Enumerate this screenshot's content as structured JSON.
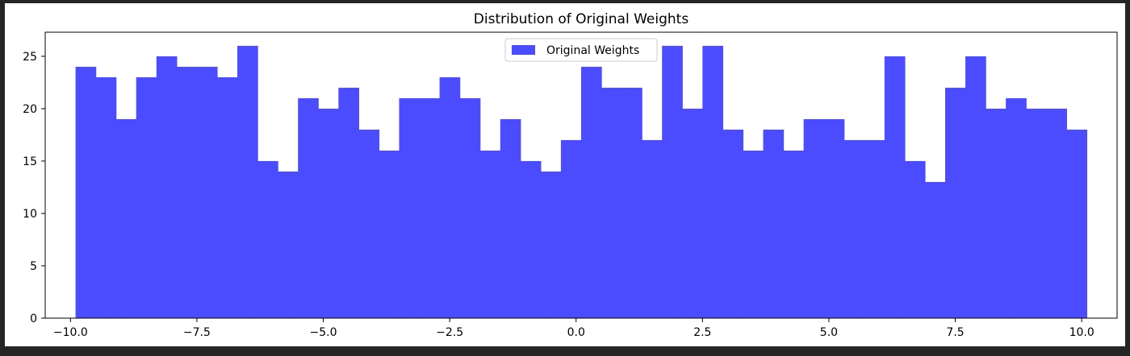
{
  "chart_data": {
    "type": "bar",
    "title": "Distribution of Original Weights",
    "xlabel": "",
    "ylabel": "",
    "xlim": [
      -10.5,
      10.7
    ],
    "ylim": [
      0,
      27.3
    ],
    "bin_start": -9.9,
    "bin_width": 0.4,
    "x_ticks": [
      -10.0,
      -7.5,
      -5.0,
      -2.5,
      0.0,
      2.5,
      5.0,
      7.5,
      10.0
    ],
    "x_tick_labels": [
      "−10.0",
      "−7.5",
      "−5.0",
      "−2.5",
      "0.0",
      "2.5",
      "5.0",
      "7.5",
      "10.0"
    ],
    "y_ticks": [
      0,
      5,
      10,
      15,
      20,
      25
    ],
    "y_tick_labels": [
      "0",
      "5",
      "10",
      "15",
      "20",
      "25"
    ],
    "grid": false,
    "legend_position": "top-center",
    "series": [
      {
        "name": "Original Weights",
        "color": "#4b4bff",
        "values": [
          24,
          23,
          19,
          23,
          25,
          24,
          24,
          23,
          26,
          15,
          14,
          21,
          20,
          22,
          18,
          16,
          21,
          21,
          23,
          21,
          16,
          19,
          15,
          14,
          17,
          24,
          22,
          22,
          17,
          26,
          20,
          26,
          18,
          16,
          18,
          16,
          19,
          19,
          17,
          17,
          25,
          15,
          13,
          22,
          25,
          20,
          21,
          20,
          20,
          18
        ]
      }
    ]
  }
}
